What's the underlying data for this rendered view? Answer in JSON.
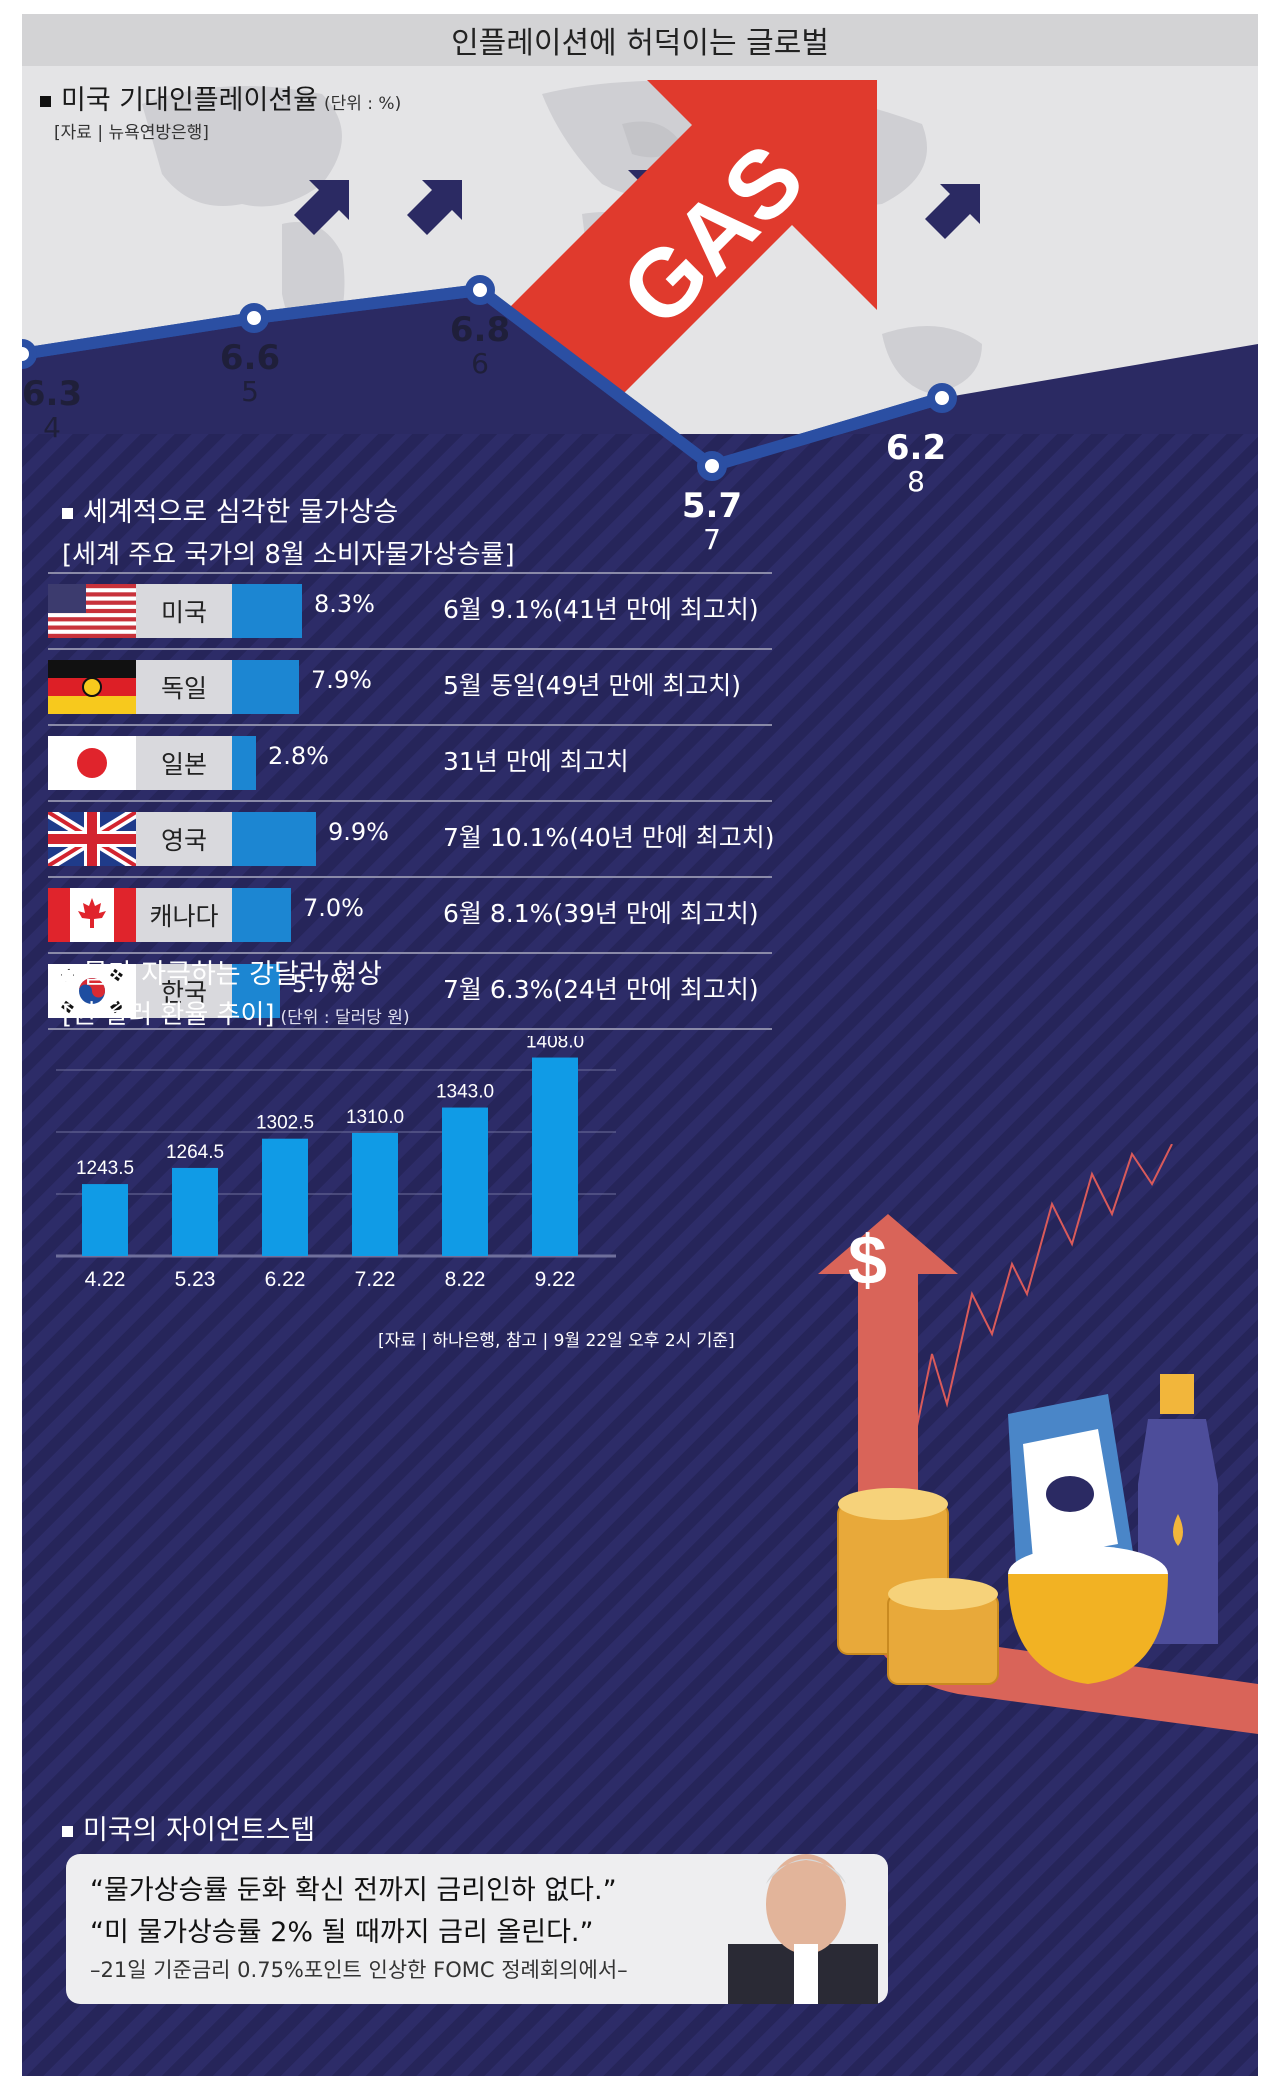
{
  "headline": "인플레이션에 허덕이는 글로벌",
  "section1": {
    "title": "미국 기대인플레이션율",
    "unit": "(단위 : %)",
    "source": "[자료 | 뉴욕연방은행]"
  },
  "gas_label": "GAS",
  "section2": {
    "title": "세계적으로 심각한 물가상승",
    "subtitle": "[세계 주요 국가의 8월 소비자물가상승률]"
  },
  "countries": [
    {
      "name": "미국",
      "value": 8.3,
      "value_label": "8.3%",
      "note": "6월 9.1%(41년 만에 최고치)",
      "flag": "us-flag-icon"
    },
    {
      "name": "독일",
      "value": 7.9,
      "value_label": "7.9%",
      "note": "5월 동일(49년 만에 최고치)",
      "flag": "germany-flag-icon"
    },
    {
      "name": "일본",
      "value": 2.8,
      "value_label": "2.8%",
      "note": "31년 만에 최고치",
      "flag": "japan-flag-icon"
    },
    {
      "name": "영국",
      "value": 9.9,
      "value_label": "9.9%",
      "note": "7월 10.1%(40년 만에 최고치)",
      "flag": "uk-flag-icon"
    },
    {
      "name": "캐나다",
      "value": 7.0,
      "value_label": "7.0%",
      "note": "6월 8.1%(39년 만에 최고치)",
      "flag": "canada-flag-icon"
    },
    {
      "name": "한국",
      "value": 5.7,
      "value_label": "5.7%",
      "note": "7월 6.3%(24년 만에 최고치)",
      "flag": "korea-flag-icon"
    }
  ],
  "section3": {
    "title": "물가 자극하는 강달러 현상",
    "subtitle": "[원·달러 환율 추이]",
    "unit": "(단위 : 달러당 원)",
    "source": "[자료 | 하나은행, 참고 | 9월 22일 오후 2시 기준]"
  },
  "dollar_symbol": "$",
  "section4": {
    "title": "미국의 자이언트스텝"
  },
  "quote": {
    "line1": "“물가상승률 둔화 확신 전까지 금리인하 없다.”",
    "line2": "“미 물가상승률 2% 될 때까지 금리 올린다.”",
    "line3": "–21일 기준금리 0.75%포인트 인상한 FOMC 정례회의에서–"
  },
  "colors": {
    "navy": "#2b2a63",
    "line": "#2b4fa3",
    "bar": "#1c86d2",
    "gas_red": "#e03a2d",
    "rate_bar": "#109be6"
  },
  "chart_data": [
    {
      "type": "line",
      "title": "미국 기대인플레이션율",
      "x": [
        "4",
        "5",
        "6",
        "7",
        "8"
      ],
      "values": [
        6.3,
        6.6,
        6.8,
        5.7,
        6.2
      ],
      "ylabel": "%"
    },
    {
      "type": "bar",
      "title": "세계 주요 국가의 8월 소비자물가상승률",
      "categories": [
        "미국",
        "독일",
        "일본",
        "영국",
        "캐나다",
        "한국"
      ],
      "values": [
        8.3,
        7.9,
        2.8,
        9.9,
        7.0,
        5.7
      ]
    },
    {
      "type": "bar",
      "title": "원·달러 환율 추이",
      "categories": [
        "4.22",
        "5.23",
        "6.22",
        "7.22",
        "8.22",
        "9.22"
      ],
      "values": [
        1243.5,
        1264.5,
        1302.5,
        1310.0,
        1343.0,
        1408.0
      ],
      "labels": [
        "1243.5",
        "1264.5",
        "1302.5",
        "1310.0",
        "1343.0",
        "1408.0"
      ],
      "ylabel": "달러당 원",
      "grid": true
    }
  ]
}
